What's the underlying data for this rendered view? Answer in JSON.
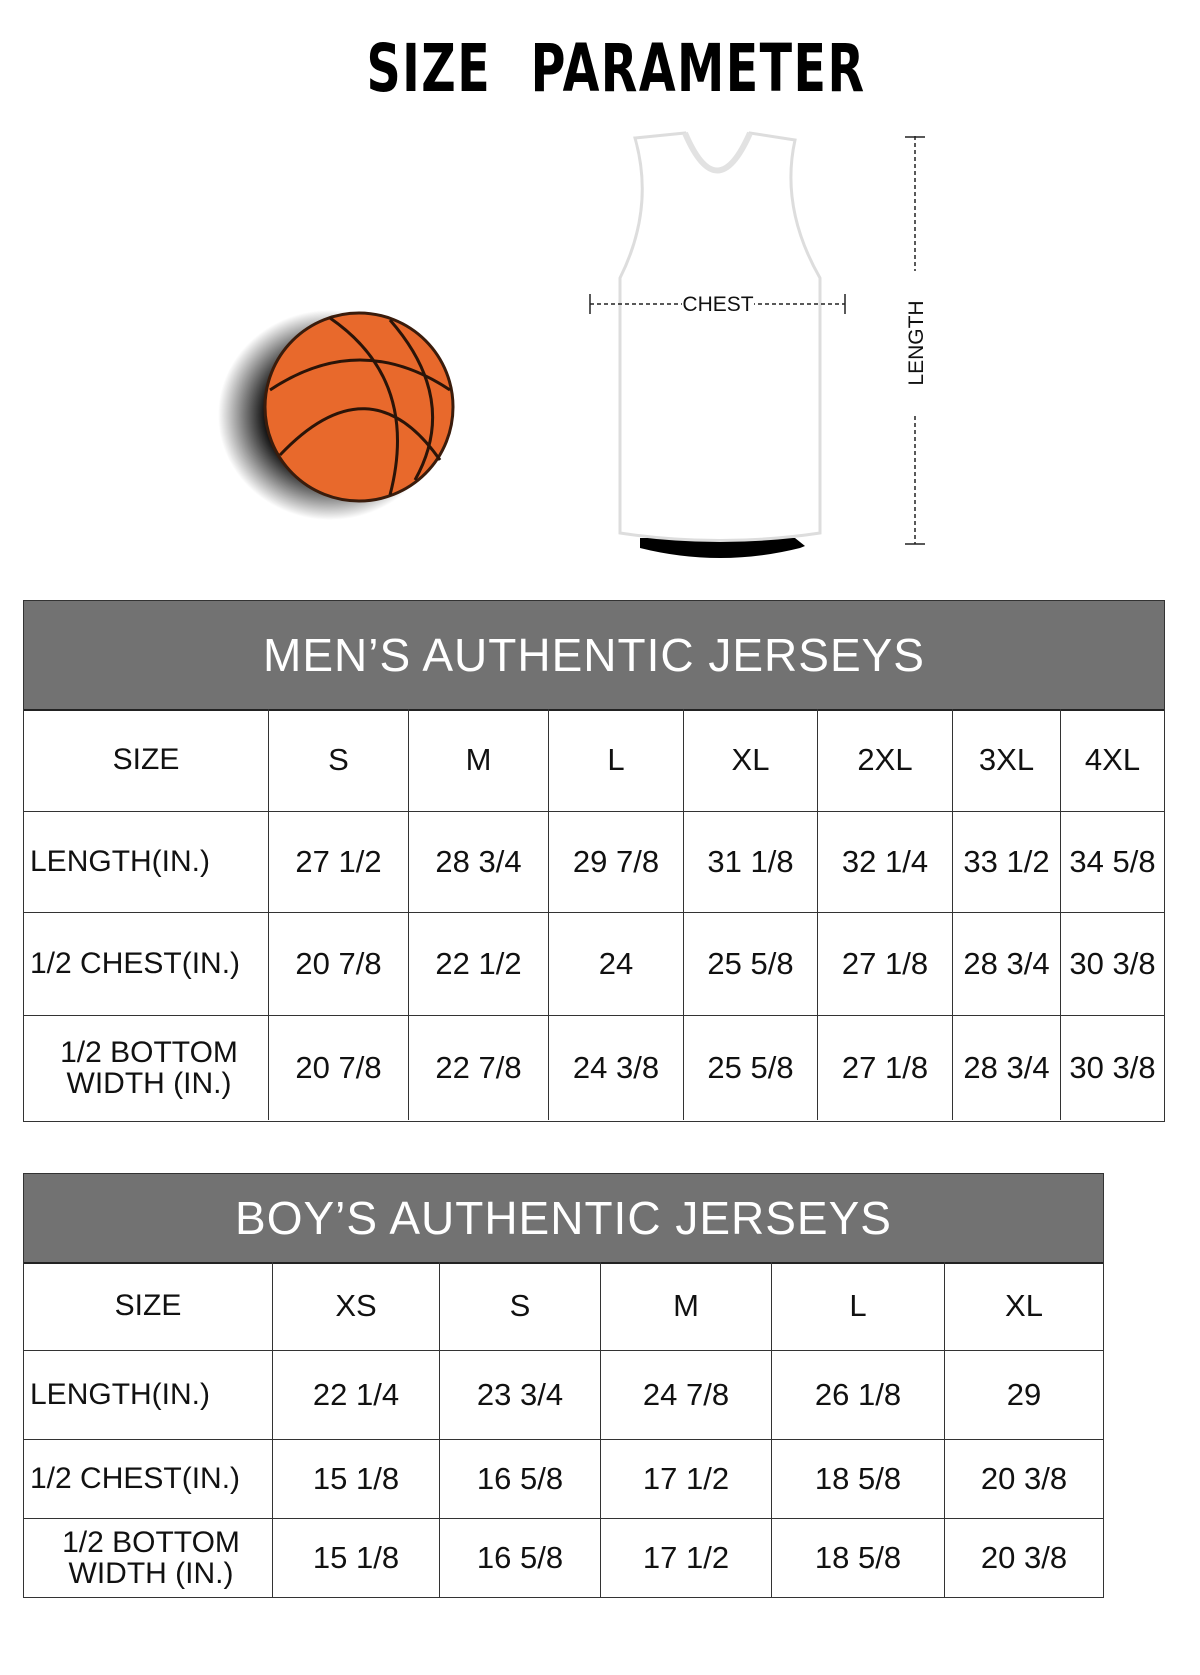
{
  "title": "SIZE PARAMETER",
  "diagram": {
    "chest_label": "CHEST",
    "length_label": "LENGTH"
  },
  "colors": {
    "header_bg": "#727272",
    "ball": "#e8692c"
  },
  "mens": {
    "title": "MEN’S AUTHENTIC JERSEYS",
    "headers": [
      "SIZE",
      "S",
      "M",
      "L",
      "XL",
      "2XL",
      "3XL",
      "4XL"
    ],
    "rows": [
      [
        "LENGTH(IN.)",
        "27  1/2",
        "28  3/4",
        "29  7/8",
        "31  1/8",
        "32  1/4",
        "33  1/2",
        "34  5/8"
      ],
      [
        "1/2 CHEST(IN.)",
        "20  7/8",
        "22  1/2",
        "24",
        "25  5/8",
        "27  1/8",
        "28  3/4",
        "30  3/8"
      ],
      [
        "1/2 BOTTOM WIDTH  (IN.)",
        "20  7/8",
        "22  7/8",
        "24  3/8",
        "25  5/8",
        "27  1/8",
        "28  3/4",
        "30  3/8"
      ]
    ]
  },
  "boys": {
    "title": "BOY’S AUTHENTIC JERSEYS",
    "headers": [
      "SIZE",
      "XS",
      "S",
      "M",
      "L",
      "XL"
    ],
    "rows": [
      [
        "LENGTH(IN.)",
        "22  1/4",
        "23  3/4",
        "24  7/8",
        "26  1/8",
        "29"
      ],
      [
        "1/2 CHEST(IN.)",
        "15  1/8",
        "16  5/8",
        "17  1/2",
        "18  5/8",
        "20  3/8"
      ],
      [
        "1/2 BOTTOM WIDTH  (IN.)",
        "15  1/8",
        "16  5/8",
        "17  1/2",
        "18  5/8",
        "20  3/8"
      ]
    ]
  }
}
